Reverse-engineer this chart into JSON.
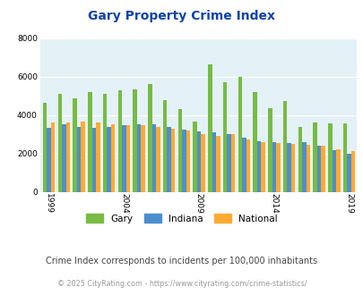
{
  "title": "Gary Property Crime Index",
  "subtitle": "Crime Index corresponds to incidents per 100,000 inhabitants",
  "footer": "© 2025 CityRating.com - https://www.cityrating.com/crime-statistics/",
  "years": [
    1999,
    2000,
    2001,
    2002,
    2003,
    2004,
    2005,
    2006,
    2007,
    2008,
    2009,
    2010,
    2011,
    2012,
    2013,
    2014,
    2015,
    2016,
    2017,
    2018,
    2019
  ],
  "gary": [
    4650,
    5100,
    4880,
    5200,
    5100,
    5300,
    5350,
    5600,
    4800,
    4300,
    3650,
    6650,
    5700,
    6000,
    5200,
    4350,
    4750,
    3400,
    3600,
    3550,
    3550
  ],
  "indiana": [
    3350,
    3500,
    3400,
    3350,
    3400,
    3450,
    3500,
    3500,
    3380,
    3250,
    3150,
    3100,
    3000,
    2800,
    2650,
    2600,
    2550,
    2600,
    2380,
    2150,
    2000
  ],
  "national": [
    3600,
    3600,
    3650,
    3600,
    3500,
    3480,
    3450,
    3390,
    3280,
    3200,
    3020,
    2900,
    3000,
    2750,
    2600,
    2560,
    2510,
    2460,
    2400,
    2200,
    2100
  ],
  "gary_color": "#77bb44",
  "indiana_color": "#4d8fcc",
  "national_color": "#ffaa33",
  "bg_color": "#e4f2f7",
  "ylim": [
    0,
    8000
  ],
  "yticks": [
    0,
    2000,
    4000,
    6000,
    8000
  ],
  "xtick_years": [
    1999,
    2004,
    2009,
    2014,
    2019
  ],
  "title_color": "#1144aa",
  "subtitle_color": "#444444",
  "footer_color": "#999999"
}
